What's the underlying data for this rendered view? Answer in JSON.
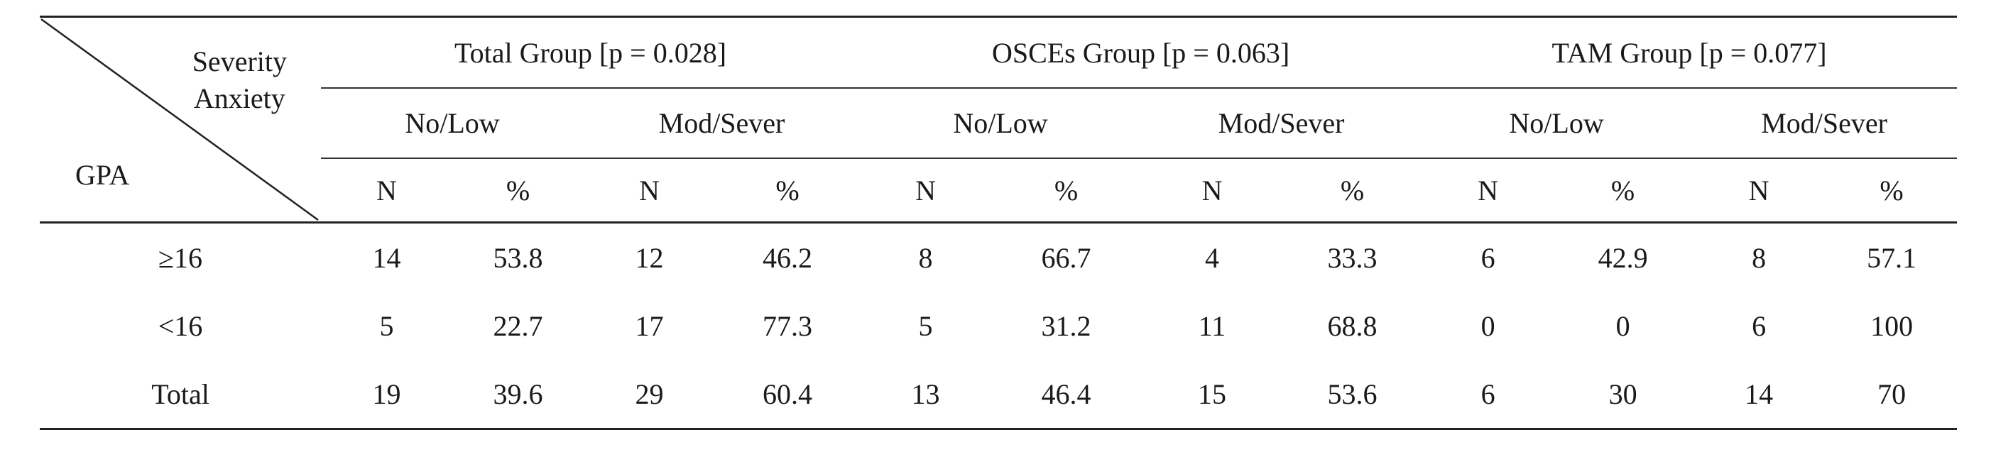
{
  "corner": {
    "severity_line1": "Severity",
    "severity_line2": "Anxiety",
    "row_label": "GPA"
  },
  "groups": [
    {
      "title": "Total Group [p = 0.028]"
    },
    {
      "title": "OSCEs Group [p = 0.063]"
    },
    {
      "title": "TAM Group [p = 0.077]"
    }
  ],
  "subgroups": [
    "No/Low",
    "Mod/Sever",
    "No/Low",
    "Mod/Sever",
    "No/Low",
    "Mod/Sever"
  ],
  "stat_cols": [
    "N",
    "%",
    "N",
    "%",
    "N",
    "%",
    "N",
    "%",
    "N",
    "%",
    "N",
    "%"
  ],
  "rows": [
    {
      "label": "≥16",
      "cells": [
        "14",
        "53.8",
        "12",
        "46.2",
        "8",
        "66.7",
        "4",
        "33.3",
        "6",
        "42.9",
        "8",
        "57.1"
      ]
    },
    {
      "label": "<16",
      "cells": [
        "5",
        "22.7",
        "17",
        "77.3",
        "5",
        "31.2",
        "11",
        "68.8",
        "0",
        "0",
        "6",
        "100"
      ]
    },
    {
      "label": "Total",
      "cells": [
        "19",
        "39.6",
        "29",
        "60.4",
        "13",
        "46.4",
        "15",
        "53.6",
        "6",
        "30",
        "14",
        "70"
      ]
    }
  ]
}
